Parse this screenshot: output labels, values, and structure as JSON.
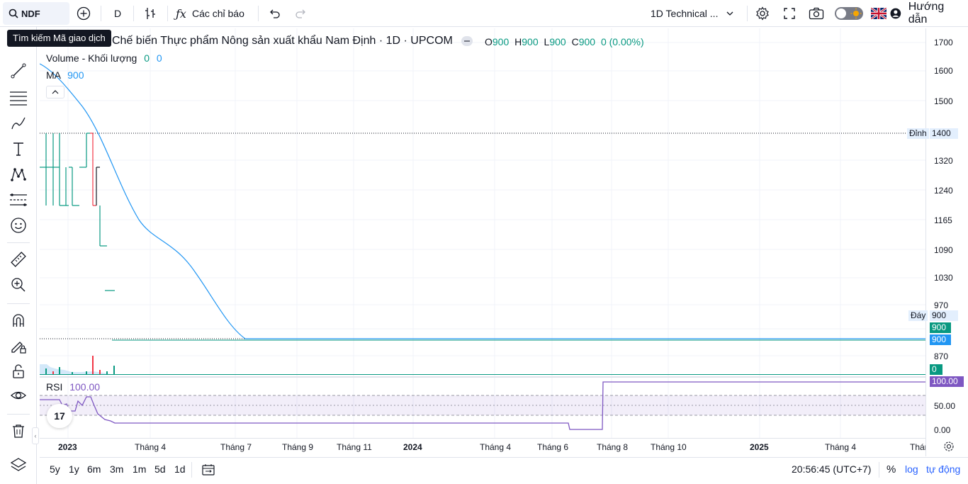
{
  "topbar": {
    "symbol": "NDF",
    "interval": "D",
    "indicators_label": "Các chỉ báo",
    "layout_name": "1D Technical ...",
    "guide_label": "Hướng dẫn"
  },
  "tooltip": "Tìm kiếm Mã giao dịch",
  "legend": {
    "title": "Chế biến Thực phẩm Nông sản xuất khẩu Nam Định · 1D · UPCOM",
    "o_label": "O",
    "o_val": "900",
    "h_label": "H",
    "h_val": "900",
    "l_label": "L",
    "l_val": "900",
    "c_label": "C",
    "c_val": "900",
    "change": "0 (0.00%)",
    "volume_label": "Volume - Khối lượng",
    "volume_v1": "0",
    "volume_v2": "0",
    "ma_label": "MA",
    "ma_value": "900",
    "rsi_label": "RSI",
    "rsi_value": "100.00"
  },
  "price_axis": {
    "labels": [
      "1700",
      "1600",
      "1500",
      "1400",
      "1320",
      "1240",
      "1165",
      "1090",
      "1030",
      "970",
      "870"
    ],
    "top_label": "Đỉnh",
    "top_value": "1400",
    "bottom_label": "Đáy",
    "bottom_value": "900",
    "last_price": "900",
    "ma_tag": "900",
    "volume_tag": "0",
    "rsi_tag": "100.00",
    "rsi_labels": [
      "50.00",
      "0.00"
    ]
  },
  "time_axis": [
    "2023",
    "Tháng 4",
    "Tháng 7",
    "Tháng 9",
    "Tháng 11",
    "2024",
    "Tháng 4",
    "Tháng 6",
    "Tháng 8",
    "Tháng 10",
    "2025",
    "Tháng 4",
    "Tháng"
  ],
  "bottombar": {
    "ranges": [
      "5y",
      "1y",
      "6m",
      "3m",
      "1m",
      "5d",
      "1d"
    ],
    "clock": "20:56:45 (UTC+7)",
    "percent": "%",
    "log": "log",
    "auto": "tự động"
  },
  "colors": {
    "up": "#089981",
    "down": "#f23645",
    "ma": "#2196f3",
    "rsi": "#7e57c2",
    "accent": "#2962ff"
  },
  "chart_data": {
    "type": "line",
    "title": "Chế biến Thực phẩm Nông sản xuất khẩu Nam Định · 1D · UPCOM",
    "series": [
      {
        "name": "MA",
        "x": [
          "2023-01",
          "2023-02",
          "2023-03",
          "2023-04",
          "2023-05",
          "2023-06",
          "2023-07",
          "2023-08",
          "2025-06"
        ],
        "values": [
          1620,
          1520,
          1330,
          1180,
          1130,
          1040,
          960,
          900,
          900
        ]
      },
      {
        "name": "RSI",
        "x": [
          "2023-01",
          "2023-02",
          "2023-03",
          "2023-04",
          "2024-06",
          "2024-07",
          "2024-08",
          "2025-06"
        ],
        "values": [
          60,
          40,
          10,
          8,
          8,
          0,
          100,
          100
        ]
      }
    ],
    "ylim": [
      850,
      1720
    ],
    "grid": true
  }
}
